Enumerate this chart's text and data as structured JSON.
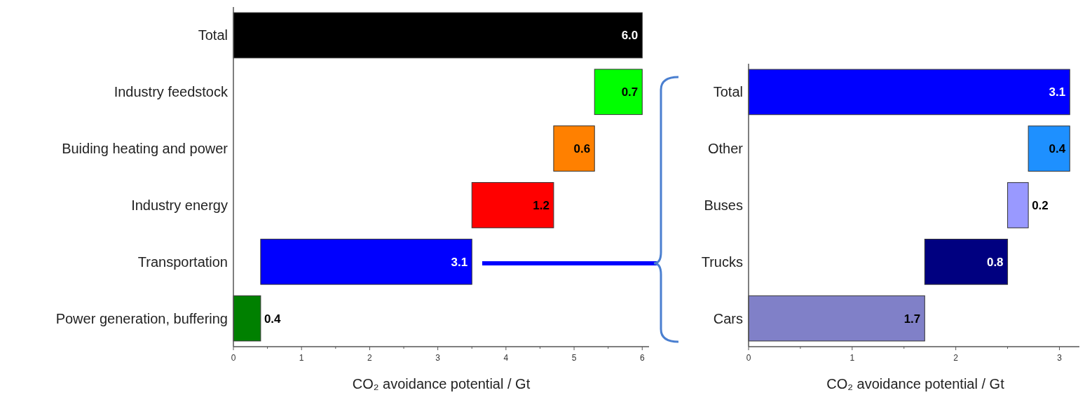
{
  "chart_data": [
    {
      "type": "bar",
      "orientation": "horizontal",
      "xlabel": "CO₂ avoidance potential / Gt",
      "categories": [
        "Total",
        "Industry feedstock",
        "Buiding heating and power",
        "Industry energy",
        "Transportation",
        "Power generation, buffering"
      ],
      "values": [
        6.0,
        0.7,
        0.6,
        1.2,
        3.1,
        0.4
      ],
      "base": [
        0,
        5.3,
        4.7,
        3.5,
        0.4,
        0
      ],
      "colors": [
        "#000000",
        "#00ff00",
        "#ff8000",
        "#ff0000",
        "#0000ff",
        "#008000"
      ],
      "value_labels": [
        "6.0",
        "0.7",
        "0.6",
        "1.2",
        "3.1",
        "0.4"
      ],
      "xlim": [
        0,
        6.1
      ],
      "xticks": [
        0,
        {
          "value": 0.5,
          "label": null
        },
        1,
        {
          "value": 1.5,
          "label": null
        },
        2,
        {
          "value": 2.5,
          "label": null
        },
        3,
        {
          "value": 3.5,
          "label": null
        },
        4,
        {
          "value": 4.5,
          "label": null
        },
        5,
        {
          "value": 5.5,
          "label": null
        },
        6
      ],
      "grid": false
    },
    {
      "type": "bar",
      "orientation": "horizontal",
      "xlabel": "CO₂ avoidance potential / Gt",
      "categories": [
        "Total",
        "Other",
        "Buses",
        "Trucks",
        "Cars"
      ],
      "values": [
        3.1,
        0.4,
        0.2,
        0.8,
        1.7
      ],
      "base": [
        0,
        2.7,
        2.5,
        1.7,
        0
      ],
      "colors": [
        "#0000ff",
        "#1e90ff",
        "#9999ff",
        "#000080",
        "#8080c8"
      ],
      "value_labels": [
        "3.1",
        "0.4",
        "0.2",
        "0.8",
        "1.7"
      ],
      "xlim": [
        0,
        3.22
      ],
      "xticks": [
        0,
        {
          "value": 0.5,
          "label": null
        },
        1,
        {
          "value": 1.5,
          "label": null
        },
        2,
        {
          "value": 2.5,
          "label": null
        },
        3
      ],
      "grid": false
    }
  ]
}
